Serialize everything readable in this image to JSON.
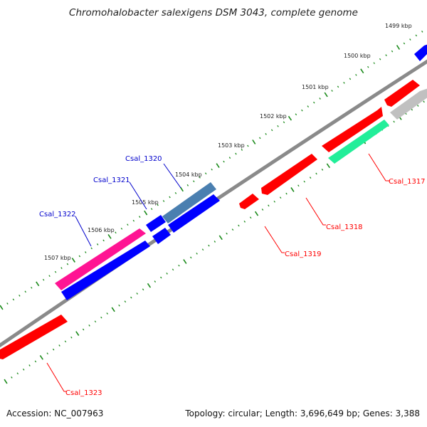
{
  "header": {
    "title": "Chromohalobacter salexigens DSM 3043, complete genome"
  },
  "footer": {
    "accession": "Accession: NC_007963",
    "summary": "Topology: circular; Length: 3,696,649 bp; Genes: 3,388"
  },
  "scale": {
    "tick_labels": [
      "1499 kbp",
      "1500 kbp",
      "1501 kbp",
      "1502 kbp",
      "1503 kbp",
      "1504 kbp",
      "1505 kbp",
      "1506 kbp",
      "1507 kbp"
    ]
  },
  "genes": [
    {
      "name": "Csal_1317",
      "strand": "reverse",
      "color": "#ff0000",
      "label_color": "#ff0000"
    },
    {
      "name": "Csal_1318",
      "strand": "reverse",
      "color": "#ff0000",
      "label_color": "#ff0000"
    },
    {
      "name": "Csal_1319",
      "strand": "reverse",
      "color": "#ff0000",
      "label_color": "#ff0000"
    },
    {
      "name": "Csal_1320",
      "strand": "forward",
      "color": "#4a7fb0",
      "label_color": "#0000cc"
    },
    {
      "name": "Csal_1321",
      "strand": "forward",
      "color": "#0000ff",
      "label_color": "#0000cc"
    },
    {
      "name": "Csal_1322",
      "strand": "forward",
      "color": "#ff1493",
      "label_color": "#0000cc"
    },
    {
      "name": "Csal_1323",
      "strand": "reverse",
      "color": "#ff0000",
      "label_color": "#ff0000"
    }
  ],
  "colors": {
    "backbone": "#888888",
    "tick": "#1a8a1a",
    "blue": "#0000ff",
    "red": "#ff0000",
    "teal": "#22ee99",
    "gray": "#bbbbbb"
  }
}
